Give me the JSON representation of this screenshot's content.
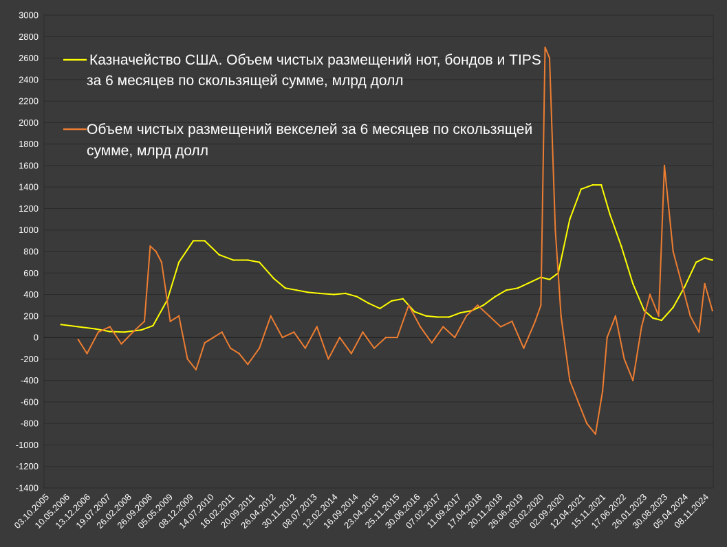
{
  "chart_data": {
    "type": "line",
    "grid": true,
    "background": "#3a3a3a",
    "ylim": [
      -1400,
      3000
    ],
    "yticks": [
      3000,
      2800,
      2600,
      2400,
      2200,
      2000,
      1800,
      1600,
      1400,
      1200,
      1000,
      800,
      600,
      400,
      200,
      0,
      -200,
      -400,
      -600,
      -800,
      -1000,
      -1200,
      -1400
    ],
    "xlim": [
      "2005-10-03",
      "2025-03-01"
    ],
    "x_tick_labels": [
      "03.10.2005",
      "10.05.2006",
      "13.12.2006",
      "19.07.2007",
      "26.02.2008",
      "26.09.2008",
      "05.05.2009",
      "08.12.2009",
      "14.07.2010",
      "16.02.2011",
      "20.09.2011",
      "26.04.2012",
      "30.11.2012",
      "08.07.2013",
      "12.02.2014",
      "16.09.2014",
      "23.04.2015",
      "25.11.2015",
      "30.06.2016",
      "07.02.2017",
      "11.09.2017",
      "17.04.2018",
      "20.11.2018",
      "26.06.2019",
      "03.02.2020",
      "02.09.2020",
      "12.04.2021",
      "15.11.2021",
      "17.06.2022",
      "26.01.2023",
      "30.08.2023",
      "05.04.2024",
      "08.11.2024"
    ],
    "legend": {
      "placement": "upper-center",
      "entries": [
        {
          "line1": "Казначейство США. Объем чистых размещений нот, бондов и TIPS",
          "line2": "за 6 месяцев по скользящей сумме, млрд долл"
        },
        {
          "line1": "Объем чистых размещений векселей за 6 месяцев по скользящей",
          "line2": "сумме, млрд долл"
        }
      ]
    },
    "series": [
      {
        "name": "Казначейство США. Объем чистых размещений нот, бондов и TIPS за 6 месяцев по скользящей сумме, млрд долл",
        "color": "#ffff00",
        "x": [
          "2006-04-01",
          "2006-10-01",
          "2007-04-01",
          "2007-09-01",
          "2008-02-01",
          "2008-08-01",
          "2008-12-01",
          "2009-05-01",
          "2009-09-01",
          "2010-02-01",
          "2010-06-01",
          "2010-11-01",
          "2011-04-01",
          "2011-09-01",
          "2012-01-01",
          "2012-06-01",
          "2012-10-01",
          "2013-02-01",
          "2013-06-01",
          "2013-10-01",
          "2014-03-01",
          "2014-07-01",
          "2014-11-01",
          "2015-03-01",
          "2015-07-01",
          "2015-11-01",
          "2016-03-01",
          "2016-07-01",
          "2016-11-01",
          "2017-03-01",
          "2017-07-01",
          "2017-11-01",
          "2018-03-01",
          "2018-07-01",
          "2018-11-01",
          "2019-03-01",
          "2019-07-01",
          "2019-11-01",
          "2020-03-01",
          "2020-06-01",
          "2020-09-01",
          "2021-01-01",
          "2021-05-01",
          "2021-09-01",
          "2021-12-01",
          "2022-03-01",
          "2022-07-01",
          "2022-11-01",
          "2023-03-01",
          "2023-06-01",
          "2023-09-01",
          "2024-01-01",
          "2024-05-01",
          "2024-09-01",
          "2024-12-01",
          "2025-02-20"
        ],
        "y": [
          120,
          100,
          80,
          55,
          50,
          70,
          110,
          350,
          700,
          900,
          900,
          770,
          720,
          720,
          700,
          550,
          460,
          440,
          420,
          410,
          400,
          410,
          380,
          320,
          270,
          340,
          360,
          240,
          200,
          190,
          190,
          230,
          250,
          300,
          380,
          440,
          460,
          510,
          560,
          540,
          600,
          1100,
          1380,
          1420,
          1420,
          1150,
          850,
          500,
          250,
          180,
          160,
          280,
          470,
          700,
          740,
          720
        ]
      },
      {
        "name": "Объем чистых размещений векселей за 6 месяцев по скользящей сумме, млрд долл",
        "color": "#ed7d31",
        "x": [
          "2006-10-01",
          "2007-01-01",
          "2007-05-01",
          "2007-09-01",
          "2008-01-01",
          "2008-05-01",
          "2008-09-01",
          "2008-11-01",
          "2009-01-01",
          "2009-03-01",
          "2009-06-01",
          "2009-09-01",
          "2009-12-01",
          "2010-03-01",
          "2010-06-01",
          "2010-09-01",
          "2010-12-01",
          "2011-03-01",
          "2011-06-01",
          "2011-09-01",
          "2012-01-01",
          "2012-05-01",
          "2012-09-01",
          "2013-01-01",
          "2013-05-01",
          "2013-09-01",
          "2014-01-01",
          "2014-05-01",
          "2014-09-01",
          "2015-01-01",
          "2015-05-01",
          "2015-09-01",
          "2016-01-01",
          "2016-05-01",
          "2016-09-01",
          "2017-01-01",
          "2017-05-01",
          "2017-09-01",
          "2018-01-01",
          "2018-05-01",
          "2018-09-01",
          "2019-01-01",
          "2019-05-01",
          "2019-09-01",
          "2020-01-01",
          "2020-03-01",
          "2020-04-15",
          "2020-06-01",
          "2020-08-01",
          "2020-10-01",
          "2021-01-01",
          "2021-04-01",
          "2021-07-01",
          "2021-10-01",
          "2021-12-15",
          "2022-02-01",
          "2022-05-01",
          "2022-08-01",
          "2022-11-01",
          "2023-02-01",
          "2023-05-01",
          "2023-08-01",
          "2023-10-01",
          "2024-01-01",
          "2024-04-01",
          "2024-07-01",
          "2024-10-01",
          "2024-12-01",
          "2025-02-20"
        ],
        "y": [
          -20,
          -150,
          50,
          100,
          -60,
          50,
          150,
          850,
          800,
          700,
          150,
          200,
          -200,
          -300,
          -50,
          0,
          50,
          -100,
          -150,
          -250,
          -100,
          200,
          0,
          50,
          -100,
          100,
          -200,
          0,
          -150,
          50,
          -100,
          0,
          0,
          300,
          100,
          -50,
          100,
          0,
          200,
          300,
          200,
          100,
          150,
          -100,
          150,
          300,
          2700,
          2600,
          1000,
          200,
          -400,
          -600,
          -800,
          -900,
          -500,
          0,
          200,
          -200,
          -400,
          100,
          400,
          200,
          1600,
          800,
          500,
          200,
          50,
          500,
          250
        ]
      }
    ]
  }
}
